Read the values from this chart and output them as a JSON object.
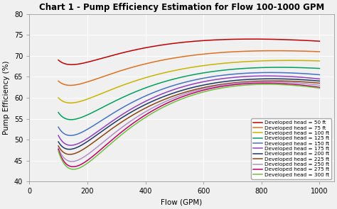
{
  "title": "Chart 1 - Pump Efficiency Estimation for Flow 100-1000 GPM",
  "xlabel": "Flow (GPM)",
  "ylabel": "Pump Efficiency (%)",
  "xlim": [
    0,
    1050
  ],
  "ylim": [
    40,
    80
  ],
  "xticks": [
    0,
    200,
    400,
    600,
    800,
    1000
  ],
  "yticks": [
    40,
    45,
    50,
    55,
    60,
    65,
    70,
    75,
    80
  ],
  "flow_range": [
    100,
    1000
  ],
  "heads": [
    50,
    75,
    100,
    125,
    150,
    175,
    200,
    225,
    250,
    275,
    300
  ],
  "line_colors": [
    "#c00000",
    "#e07020",
    "#c8b400",
    "#00a060",
    "#4472c4",
    "#9040c0",
    "#1f3864",
    "#8B4513",
    "#b090c8",
    "#c0006a",
    "#70c040"
  ],
  "background_color": "#f0f0f0",
  "grid_color": "#ffffff",
  "figsize": [
    4.74,
    2.95
  ],
  "dpi": 100,
  "title_fontsize": 8.5,
  "label_fontsize": 7.5,
  "tick_fontsize": 7,
  "legend_fontsize": 5.2,
  "anchor_points": {
    "Q100": [
      69.0,
      64.0,
      60.0,
      56.5,
      53.0,
      51.0,
      49.5,
      48.5,
      48.0,
      47.7,
      47.3
    ],
    "Q500": [
      73.0,
      69.5,
      66.5,
      64.5,
      63.0,
      62.0,
      61.2,
      60.5,
      60.0,
      59.5,
      59.0
    ],
    "Q800": [
      74.0,
      71.2,
      68.8,
      67.2,
      66.0,
      65.2,
      64.5,
      64.0,
      63.8,
      63.5,
      63.2
    ],
    "Q1000": [
      73.5,
      71.0,
      68.8,
      67.0,
      65.5,
      64.5,
      64.0,
      63.5,
      63.0,
      62.5,
      62.3
    ]
  }
}
